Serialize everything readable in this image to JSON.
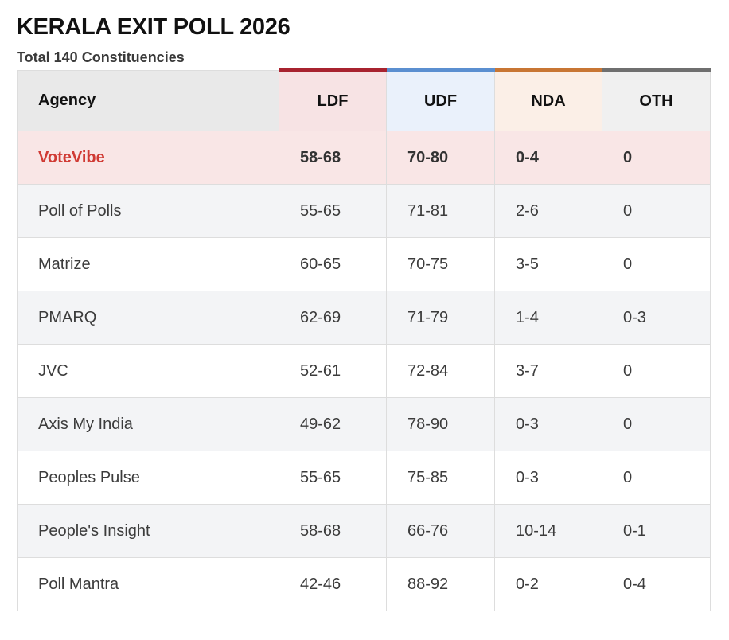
{
  "title": "KERALA EXIT POLL 2026",
  "subtitle": "Total 140 Constituencies",
  "headers": {
    "agency": "Agency",
    "ldf": "LDF",
    "udf": "UDF",
    "nda": "NDA",
    "oth": "OTH"
  },
  "colors": {
    "ldf": "#a8232f",
    "udf": "#5b8fd0",
    "nda": "#c87634",
    "oth": "#6f6f6f",
    "highlight_text": "#d03a34"
  },
  "rows": [
    {
      "agency": "VoteVibe",
      "ldf": "58-68",
      "udf": "70-80",
      "nda": "0-4",
      "oth": "0"
    },
    {
      "agency": "Poll of Polls",
      "ldf": "55-65",
      "udf": "71-81",
      "nda": "2-6",
      "oth": "0"
    },
    {
      "agency": "Matrize",
      "ldf": "60-65",
      "udf": "70-75",
      "nda": "3-5",
      "oth": "0"
    },
    {
      "agency": "PMARQ",
      "ldf": "62-69",
      "udf": "71-79",
      "nda": "1-4",
      "oth": "0-3"
    },
    {
      "agency": "JVC",
      "ldf": "52-61",
      "udf": "72-84",
      "nda": "3-7",
      "oth": "0"
    },
    {
      "agency": "Axis My India",
      "ldf": "49-62",
      "udf": "78-90",
      "nda": "0-3",
      "oth": "0"
    },
    {
      "agency": "Peoples Pulse",
      "ldf": "55-65",
      "udf": "75-85",
      "nda": "0-3",
      "oth": "0"
    },
    {
      "agency": "People's Insight",
      "ldf": "58-68",
      "udf": "66-76",
      "nda": "10-14",
      "oth": "0-1"
    },
    {
      "agency": "Poll Mantra",
      "ldf": "42-46",
      "udf": "88-92",
      "nda": "0-2",
      "oth": "0-4"
    }
  ]
}
